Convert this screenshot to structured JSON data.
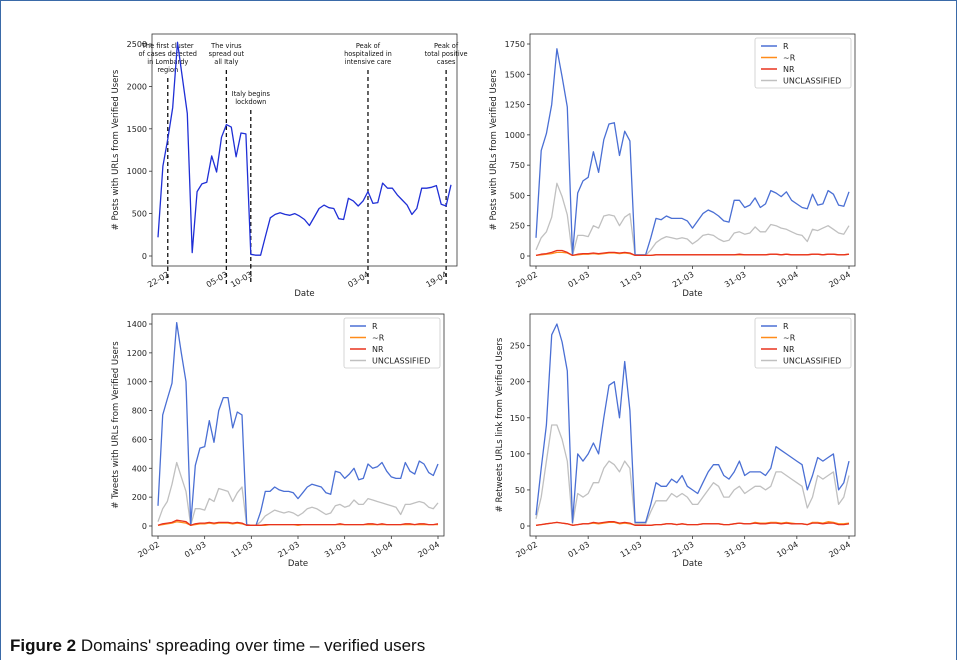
{
  "caption": {
    "label": "Figure 2",
    "text": "Domains' spreading over time – verified users"
  },
  "colors": {
    "R": "#4a6fd4",
    "~R": "#ff8c1a",
    "NR": "#e8321e",
    "UNCLASSIFIED": "#c0c0c0",
    "single": "#1f2fd6",
    "frame": "#3a6aa8"
  },
  "chart_data": [
    {
      "type": "line",
      "title": "",
      "xlabel": "Date",
      "ylabel": "# Posts with URLs from Verified Users",
      "x_start": "20-02",
      "ylim": [
        0,
        2500
      ],
      "yticks": [
        0,
        500,
        1000,
        1500,
        2000,
        2500
      ],
      "xticks": [
        {
          "label": "22-02",
          "day": 2
        },
        {
          "label": "05-03",
          "day": 14
        },
        {
          "label": "10-03",
          "day": 19
        },
        {
          "label": "03-04",
          "day": 43
        },
        {
          "label": "19-04",
          "day": 59
        }
      ],
      "annotations": [
        {
          "day": 2,
          "text": [
            "The first cluster",
            "of cases detected",
            "in Lombardy",
            "region"
          ]
        },
        {
          "day": 14,
          "text": [
            "The virus",
            "spread out",
            "all Italy"
          ]
        },
        {
          "day": 19,
          "text": [
            "Italy begins",
            "lockdown"
          ]
        },
        {
          "day": 43,
          "text": [
            "Peak of",
            "hospitalized in",
            "intensive care"
          ]
        },
        {
          "day": 59,
          "text": [
            "Peak of",
            "total positive",
            "cases"
          ]
        }
      ],
      "series": [
        {
          "values": [
            220,
            1060,
            1380,
            1750,
            2520,
            2100,
            1680,
            40,
            760,
            850,
            870,
            1180,
            990,
            1400,
            1550,
            1520,
            1170,
            1450,
            1440,
            20,
            10,
            10,
            230,
            450,
            490,
            510,
            490,
            480,
            500,
            470,
            430,
            360,
            460,
            560,
            600,
            570,
            560,
            440,
            430,
            680,
            650,
            590,
            650,
            760,
            620,
            630,
            860,
            800,
            800,
            720,
            660,
            600,
            490,
            560,
            800,
            800,
            810,
            830,
            610,
            590,
            840
          ]
        }
      ]
    },
    {
      "type": "line",
      "title": "",
      "xlabel": "Date",
      "ylabel": "# Posts with URLs from Verified Users",
      "x_start": "20-02",
      "ylim": [
        0,
        1750
      ],
      "yticks": [
        0,
        250,
        500,
        750,
        1000,
        1250,
        1500,
        1750
      ],
      "xticks": [
        {
          "label": "20-02",
          "day": 0
        },
        {
          "label": "01-03",
          "day": 10
        },
        {
          "label": "11-03",
          "day": 20
        },
        {
          "label": "21-03",
          "day": 30
        },
        {
          "label": "31-03",
          "day": 40
        },
        {
          "label": "10-04",
          "day": 50
        },
        {
          "label": "20-04",
          "day": 60
        }
      ],
      "legend": [
        "R",
        "~R",
        "NR",
        "UNCLASSIFIED"
      ],
      "legend_placement": "top-right",
      "series": [
        {
          "name": "R",
          "values": [
            150,
            870,
            1010,
            1250,
            1710,
            1480,
            1230,
            10,
            520,
            620,
            650,
            860,
            690,
            960,
            1090,
            1100,
            830,
            1030,
            950,
            10,
            10,
            10,
            150,
            310,
            300,
            330,
            310,
            310,
            310,
            290,
            230,
            290,
            350,
            380,
            360,
            330,
            290,
            280,
            460,
            460,
            400,
            420,
            480,
            400,
            430,
            540,
            520,
            490,
            530,
            460,
            430,
            400,
            390,
            510,
            420,
            430,
            540,
            510,
            420,
            410,
            530
          ]
        },
        {
          "name": "~R",
          "values": [
            5,
            10,
            15,
            20,
            30,
            30,
            25,
            5,
            10,
            15,
            15,
            20,
            15,
            20,
            25,
            25,
            20,
            25,
            20,
            5,
            5,
            5,
            5,
            10,
            10,
            10,
            10,
            10,
            10,
            10,
            10,
            10,
            10,
            10,
            10,
            10,
            10,
            10,
            10,
            10,
            10,
            10,
            10,
            10,
            10,
            15,
            15,
            10,
            15,
            10,
            10,
            10,
            10,
            15,
            15,
            10,
            15,
            15,
            10,
            10,
            15
          ]
        },
        {
          "name": "NR",
          "values": [
            5,
            15,
            20,
            30,
            45,
            45,
            30,
            5,
            15,
            20,
            20,
            25,
            20,
            25,
            30,
            30,
            25,
            30,
            25,
            5,
            5,
            5,
            5,
            10,
            10,
            10,
            10,
            10,
            10,
            10,
            10,
            10,
            10,
            10,
            10,
            10,
            10,
            10,
            10,
            15,
            10,
            10,
            10,
            10,
            10,
            15,
            15,
            10,
            15,
            10,
            10,
            10,
            10,
            15,
            15,
            10,
            15,
            15,
            10,
            10,
            15
          ]
        },
        {
          "name": "UNCLASSIFIED",
          "values": [
            50,
            150,
            200,
            320,
            600,
            490,
            340,
            5,
            170,
            170,
            160,
            250,
            230,
            330,
            340,
            330,
            250,
            320,
            350,
            5,
            5,
            5,
            50,
            110,
            140,
            160,
            150,
            140,
            150,
            140,
            100,
            130,
            170,
            180,
            170,
            140,
            120,
            130,
            190,
            200,
            180,
            190,
            240,
            200,
            200,
            260,
            250,
            230,
            220,
            200,
            180,
            170,
            120,
            220,
            210,
            230,
            250,
            220,
            190,
            180,
            250
          ]
        }
      ]
    },
    {
      "type": "line",
      "title": "",
      "xlabel": "Date",
      "ylabel": "# Tweets with URLs from Verified Users",
      "x_start": "20-02",
      "ylim": [
        0,
        1400
      ],
      "yticks": [
        0,
        200,
        400,
        600,
        800,
        1000,
        1200,
        1400
      ],
      "xticks": [
        {
          "label": "20-02",
          "day": 0
        },
        {
          "label": "01-03",
          "day": 10
        },
        {
          "label": "11-03",
          "day": 20
        },
        {
          "label": "21-03",
          "day": 30
        },
        {
          "label": "31-03",
          "day": 40
        },
        {
          "label": "10-04",
          "day": 50
        },
        {
          "label": "20-04",
          "day": 60
        }
      ],
      "legend": [
        "R",
        "~R",
        "NR",
        "UNCLASSIFIED"
      ],
      "legend_placement": "top-right",
      "series": [
        {
          "name": "R",
          "values": [
            140,
            770,
            880,
            990,
            1410,
            1200,
            1000,
            10,
            420,
            540,
            550,
            730,
            580,
            800,
            890,
            890,
            680,
            790,
            770,
            10,
            5,
            5,
            100,
            240,
            240,
            270,
            250,
            240,
            240,
            230,
            190,
            230,
            270,
            290,
            280,
            270,
            230,
            220,
            380,
            370,
            330,
            360,
            400,
            320,
            330,
            430,
            400,
            410,
            440,
            380,
            340,
            330,
            330,
            440,
            380,
            360,
            450,
            430,
            370,
            350,
            430
          ]
        },
        {
          "name": "~R",
          "values": [
            5,
            10,
            15,
            20,
            30,
            25,
            20,
            5,
            10,
            15,
            15,
            20,
            15,
            20,
            20,
            20,
            15,
            20,
            15,
            5,
            5,
            5,
            5,
            5,
            10,
            10,
            10,
            10,
            10,
            10,
            5,
            10,
            10,
            10,
            10,
            10,
            10,
            10,
            10,
            10,
            10,
            10,
            10,
            10,
            10,
            10,
            10,
            10,
            10,
            10,
            10,
            10,
            10,
            10,
            10,
            10,
            10,
            10,
            10,
            10,
            10
          ]
        },
        {
          "name": "NR",
          "values": [
            5,
            15,
            20,
            25,
            40,
            35,
            30,
            5,
            15,
            20,
            20,
            25,
            20,
            25,
            25,
            25,
            20,
            25,
            20,
            5,
            5,
            5,
            5,
            10,
            10,
            10,
            10,
            10,
            10,
            10,
            10,
            10,
            10,
            10,
            10,
            10,
            10,
            10,
            10,
            15,
            10,
            10,
            10,
            10,
            10,
            15,
            15,
            10,
            15,
            10,
            10,
            10,
            10,
            15,
            15,
            10,
            15,
            15,
            10,
            10,
            15
          ]
        },
        {
          "name": "UNCLASSIFIED",
          "values": [
            30,
            120,
            170,
            290,
            440,
            340,
            240,
            5,
            120,
            120,
            110,
            190,
            170,
            260,
            250,
            240,
            170,
            230,
            270,
            5,
            5,
            5,
            30,
            70,
            90,
            110,
            100,
            90,
            100,
            90,
            70,
            90,
            120,
            130,
            120,
            100,
            80,
            90,
            140,
            150,
            130,
            140,
            180,
            150,
            150,
            190,
            180,
            170,
            160,
            150,
            140,
            130,
            80,
            150,
            150,
            160,
            170,
            160,
            130,
            120,
            160
          ]
        }
      ]
    },
    {
      "type": "line",
      "title": "",
      "xlabel": "Date",
      "ylabel": "# Retweets URLs link from Verified Users",
      "x_start": "20-02",
      "ylim": [
        0,
        280
      ],
      "yticks": [
        0,
        50,
        100,
        150,
        200,
        250
      ],
      "xticks": [
        {
          "label": "20-02",
          "day": 0
        },
        {
          "label": "01-03",
          "day": 10
        },
        {
          "label": "11-03",
          "day": 20
        },
        {
          "label": "21-03",
          "day": 30
        },
        {
          "label": "31-03",
          "day": 40
        },
        {
          "label": "10-04",
          "day": 50
        },
        {
          "label": "20-04",
          "day": 60
        }
      ],
      "legend": [
        "R",
        "~R",
        "NR",
        "UNCLASSIFIED"
      ],
      "legend_placement": "top-right",
      "series": [
        {
          "name": "R",
          "values": [
            15,
            80,
            140,
            265,
            280,
            255,
            215,
            5,
            100,
            90,
            100,
            115,
            100,
            150,
            195,
            200,
            150,
            228,
            160,
            5,
            5,
            5,
            30,
            60,
            55,
            55,
            65,
            60,
            70,
            55,
            50,
            45,
            60,
            75,
            85,
            85,
            70,
            65,
            75,
            90,
            70,
            75,
            75,
            75,
            70,
            80,
            110,
            105,
            100,
            95,
            90,
            85,
            50,
            70,
            95,
            90,
            95,
            100,
            50,
            60,
            90
          ]
        },
        {
          "name": "~R",
          "values": [
            1,
            2,
            3,
            4,
            5,
            4,
            3,
            1,
            2,
            3,
            3,
            4,
            3,
            4,
            5,
            5,
            3,
            4,
            3,
            1,
            1,
            1,
            1,
            2,
            2,
            3,
            3,
            2,
            3,
            2,
            2,
            2,
            3,
            3,
            3,
            3,
            2,
            2,
            3,
            4,
            3,
            3,
            5,
            4,
            4,
            5,
            5,
            4,
            5,
            4,
            3,
            3,
            2,
            5,
            5,
            4,
            6,
            5,
            3,
            3,
            4
          ]
        },
        {
          "name": "NR",
          "values": [
            1,
            2,
            3,
            4,
            5,
            4,
            3,
            1,
            2,
            3,
            3,
            5,
            4,
            5,
            6,
            6,
            4,
            5,
            4,
            1,
            1,
            1,
            1,
            2,
            2,
            3,
            3,
            2,
            3,
            2,
            2,
            2,
            3,
            3,
            3,
            3,
            2,
            2,
            3,
            4,
            3,
            3,
            4,
            3,
            3,
            4,
            4,
            3,
            4,
            3,
            3,
            3,
            2,
            4,
            4,
            3,
            4,
            4,
            2,
            2,
            3
          ]
        },
        {
          "name": "UNCLASSIFIED",
          "values": [
            10,
            40,
            90,
            140,
            140,
            120,
            90,
            3,
            45,
            40,
            45,
            60,
            60,
            80,
            90,
            85,
            75,
            90,
            80,
            3,
            3,
            3,
            20,
            35,
            35,
            35,
            45,
            40,
            45,
            40,
            30,
            30,
            40,
            50,
            60,
            55,
            40,
            40,
            50,
            55,
            45,
            50,
            55,
            55,
            50,
            55,
            75,
            75,
            70,
            65,
            60,
            55,
            25,
            40,
            70,
            65,
            70,
            75,
            30,
            40,
            70
          ]
        }
      ]
    }
  ]
}
